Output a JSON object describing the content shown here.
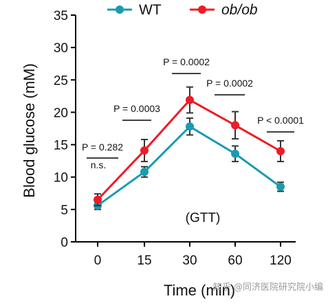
{
  "chart_data": {
    "type": "line",
    "xlabel": "Time (min)",
    "ylabel": "Blood glucose (mM)",
    "categories": [
      "0",
      "15",
      "30",
      "60",
      "120"
    ],
    "ylim": [
      0,
      35
    ],
    "yticks": [
      "0",
      "5",
      "10",
      "15",
      "20",
      "25",
      "30",
      "35"
    ],
    "grid": false,
    "legend_position": "top",
    "series": [
      {
        "name": "WT",
        "color": "#1a9bb0",
        "values": [
          5.6,
          10.8,
          17.8,
          13.6,
          8.5
        ],
        "errors": [
          0.6,
          0.8,
          1.3,
          1.2,
          0.7
        ]
      },
      {
        "name": "ob/ob",
        "color": "#ee1c25",
        "values": [
          6.5,
          14.1,
          21.9,
          18.0,
          14.0
        ],
        "errors": [
          0.9,
          1.7,
          2.0,
          2.1,
          1.6
        ]
      }
    ],
    "annotations": [
      {
        "between": [
          "0",
          "0"
        ],
        "text_p": "P = 0.282",
        "text_sub": "n.s."
      },
      {
        "between": [
          "0",
          "15"
        ],
        "text_p": "P = 0.0003"
      },
      {
        "between": [
          "15",
          "30"
        ],
        "text_p": "P = 0.0002"
      },
      {
        "between": [
          "30",
          "60"
        ],
        "text_p": "P = 0.0002"
      },
      {
        "between": [
          "60",
          "120"
        ],
        "text_p": "P < 0.0001"
      }
    ],
    "inner_label": "(GTT)"
  },
  "watermark": "知乎 @同济医院研究院小编"
}
